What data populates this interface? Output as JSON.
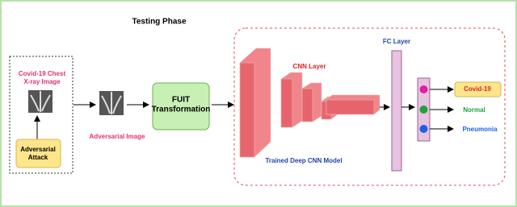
{
  "title": "Testing Phase",
  "input": {
    "label": [
      "Covid-19 Chest",
      "X-ray Image"
    ]
  },
  "attack": {
    "label": [
      "Adversarial",
      "Attack"
    ]
  },
  "adversarial_image": {
    "label": "Adversarial Image"
  },
  "fuit": {
    "label": [
      "FUIT",
      "Transformation"
    ]
  },
  "cnn": {
    "layer_label": "CNN Layer",
    "model_label": "Trained Deep CNN Model"
  },
  "fc": {
    "label": "FC Layer"
  },
  "outputs": [
    "Covid-19",
    "Normal",
    "Pneumonia"
  ]
}
